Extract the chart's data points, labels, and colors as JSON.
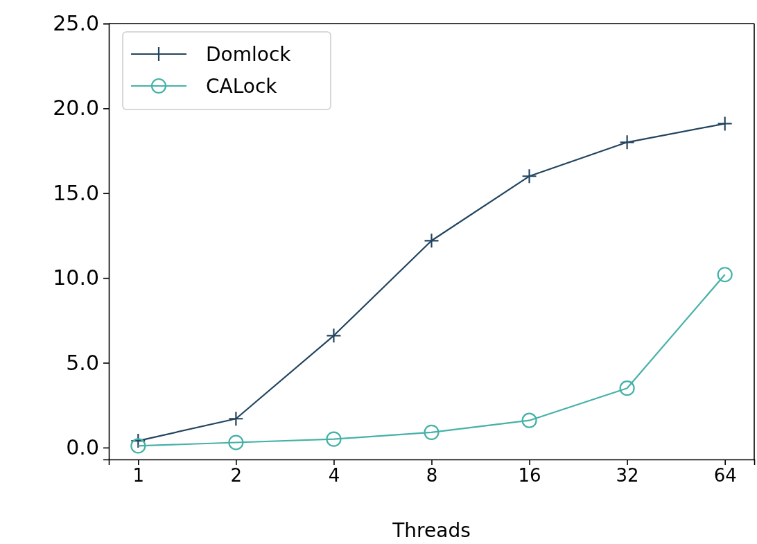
{
  "chart_data": {
    "type": "line",
    "xlabel": "Threads",
    "categories": [
      "1",
      "2",
      "4",
      "8",
      "16",
      "32",
      "64"
    ],
    "series": [
      {
        "name": "Domlock",
        "color": "#22445f",
        "marker": "cross",
        "values": [
          0.4,
          1.7,
          6.6,
          12.2,
          16.0,
          18.0,
          19.1
        ]
      },
      {
        "name": "CALock",
        "color": "#45b1a8",
        "marker": "circle",
        "values": [
          0.1,
          0.3,
          0.5,
          0.9,
          1.6,
          3.5,
          10.2
        ]
      }
    ],
    "ylim": [
      -0.7,
      25
    ],
    "yticks": [
      {
        "value": 0,
        "label": "0.0"
      },
      {
        "value": 5,
        "label": "5.0"
      },
      {
        "value": 10,
        "label": "10.0"
      },
      {
        "value": 15,
        "label": "15.0"
      },
      {
        "value": 20,
        "label": "20.0"
      },
      {
        "value": 25,
        "label": "25.0"
      }
    ],
    "grid": false,
    "legend": "top left",
    "line_style": "solid"
  }
}
